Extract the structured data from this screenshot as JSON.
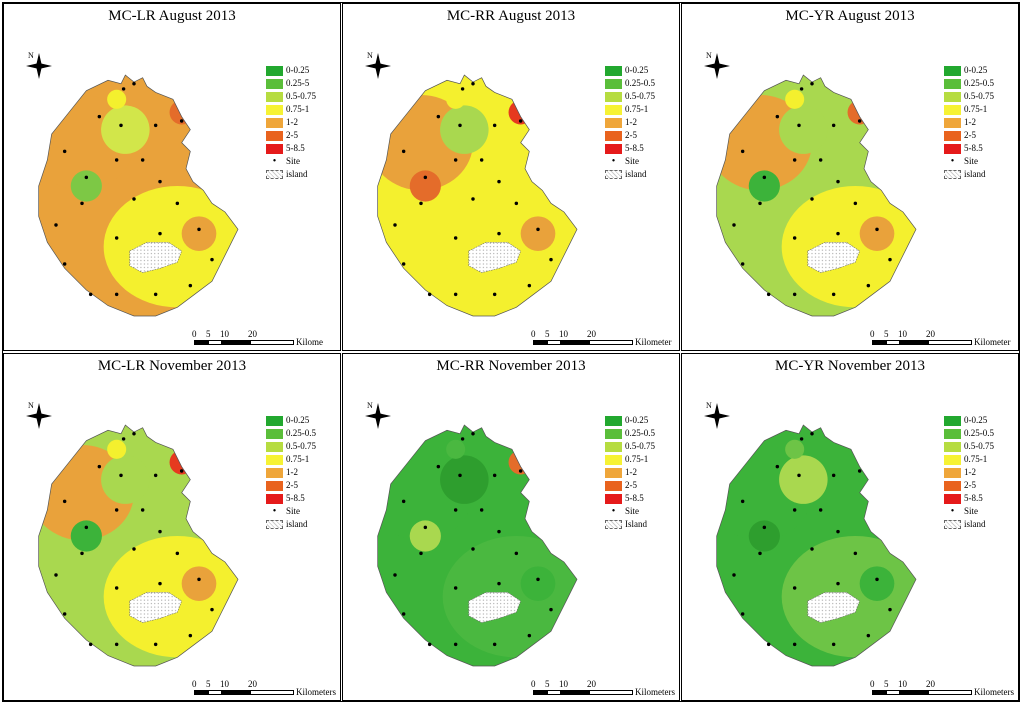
{
  "figure": {
    "panels": [
      {
        "id": "p1",
        "title": "MC-LR August 2013",
        "scale_unit": "Kilome",
        "bg": "#E9A23B",
        "patches": [
          "#E9A23B",
          "#F4F02E",
          "#D2E64A",
          "#7DC845",
          "#E46C2A"
        ]
      },
      {
        "id": "p2",
        "title": "MC-RR August 2013",
        "scale_unit": "Kilometer",
        "bg": "#F4F02E",
        "patches": [
          "#E9A23B",
          "#F4F02E",
          "#A9D84F",
          "#E46C2A",
          "#E63A1F"
        ]
      },
      {
        "id": "p3",
        "title": "MC-YR August 2013",
        "scale_unit": "Kilometer",
        "bg": "#A9D84F",
        "patches": [
          "#E9A23B",
          "#F4F02E",
          "#A9D84F",
          "#3CB33A",
          "#E46C2A"
        ]
      },
      {
        "id": "p4",
        "title": "MC-LR November 2013",
        "scale_unit": "Kilometers",
        "bg": "#A9D84F",
        "patches": [
          "#E9A23B",
          "#F4F02E",
          "#A9D84F",
          "#3CB33A",
          "#E63A1F"
        ]
      },
      {
        "id": "p5",
        "title": "MC-RR November 2013",
        "scale_unit": "Kilometers",
        "bg": "#3CB33A",
        "patches": [
          "#3CB33A",
          "#4AB840",
          "#2E9E2E",
          "#A9D84F",
          "#E46C2A"
        ]
      },
      {
        "id": "p6",
        "title": "MC-YR November 2013",
        "scale_unit": "Kilometers",
        "bg": "#3CB33A",
        "patches": [
          "#3CB33A",
          "#6DC446",
          "#A9D84F",
          "#2E9E2E",
          "#3CB33A"
        ]
      }
    ],
    "legend": {
      "classes": [
        {
          "label": "0-0.25",
          "color": "#22A82F"
        },
        {
          "label": "0.25-5",
          "label_variants": [
            "0.25-5",
            "0.25-0.5",
            "0.25-0.5",
            "0.25-0.5",
            "0.25-0.5",
            "0.25-0.5"
          ],
          "color": "#5ABE3A"
        },
        {
          "label": "0.5-0.75",
          "color": "#B6DC40"
        },
        {
          "label": "0.75-1",
          "color": "#F6F234"
        },
        {
          "label": "1-2",
          "color": "#EFA63A"
        },
        {
          "label": "2-5",
          "color": "#E9631E"
        },
        {
          "label": "5-8.5",
          "color": "#E51A1A"
        }
      ],
      "site_label": "Site",
      "island_label": "island",
      "island_label_variants": [
        "island",
        "island",
        "island",
        "island",
        "Island",
        "island"
      ]
    },
    "scale_ticks": [
      "0",
      "5",
      "10",
      "20"
    ],
    "north_label": "N"
  }
}
